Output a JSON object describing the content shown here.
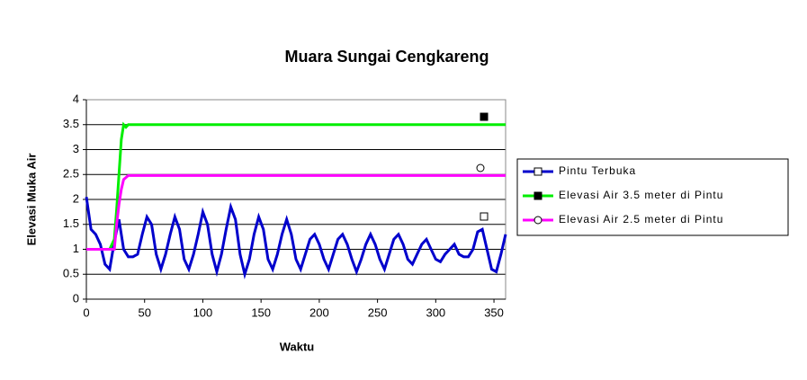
{
  "chart_data": {
    "type": "line",
    "title": "Muara Sungai Cengkareng",
    "x_label": "Waktu",
    "y_label": "Elevasi Muka Air",
    "xlim": [
      0,
      360
    ],
    "xticks": [
      0,
      50,
      100,
      150,
      200,
      250,
      300,
      350
    ],
    "ylim": [
      0,
      4
    ],
    "yticks": [
      0,
      0.5,
      1,
      1.5,
      2,
      2.5,
      3,
      3.5,
      4
    ],
    "grid": true,
    "legend": "right",
    "series": [
      {
        "name": "Pintu Terbuka",
        "color": "#0000cc",
        "marker": "square",
        "x": [
          0,
          4,
          8,
          12,
          16,
          20,
          24,
          28,
          32,
          36,
          40,
          44,
          48,
          52,
          56,
          60,
          64,
          68,
          72,
          76,
          80,
          84,
          88,
          92,
          96,
          100,
          104,
          108,
          112,
          116,
          120,
          124,
          128,
          132,
          136,
          140,
          144,
          148,
          152,
          156,
          160,
          164,
          168,
          172,
          176,
          180,
          184,
          188,
          192,
          196,
          200,
          204,
          208,
          212,
          216,
          220,
          224,
          228,
          232,
          236,
          240,
          244,
          248,
          252,
          256,
          260,
          264,
          268,
          272,
          276,
          280,
          284,
          288,
          292,
          296,
          300,
          304,
          308,
          312,
          316,
          320,
          324,
          328,
          332,
          336,
          340,
          344,
          348,
          352,
          356,
          360
        ],
        "values": [
          2.05,
          1.4,
          1.3,
          1.1,
          0.7,
          0.6,
          1.15,
          1.6,
          1.0,
          0.85,
          0.85,
          0.9,
          1.3,
          1.65,
          1.5,
          0.9,
          0.6,
          0.9,
          1.3,
          1.65,
          1.4,
          0.8,
          0.6,
          0.9,
          1.3,
          1.75,
          1.5,
          0.9,
          0.55,
          0.9,
          1.4,
          1.85,
          1.6,
          0.9,
          0.5,
          0.8,
          1.3,
          1.65,
          1.4,
          0.8,
          0.6,
          0.9,
          1.3,
          1.6,
          1.3,
          0.8,
          0.6,
          0.9,
          1.2,
          1.3,
          1.1,
          0.8,
          0.6,
          0.9,
          1.2,
          1.3,
          1.1,
          0.8,
          0.55,
          0.8,
          1.1,
          1.3,
          1.1,
          0.8,
          0.6,
          0.9,
          1.2,
          1.3,
          1.1,
          0.8,
          0.7,
          0.9,
          1.1,
          1.2,
          1.0,
          0.8,
          0.75,
          0.9,
          1.0,
          1.1,
          0.9,
          0.85,
          0.85,
          1.0,
          1.35,
          1.4,
          1.0,
          0.6,
          0.55,
          0.9,
          1.3
        ]
      },
      {
        "name": "Elevasi Air 3.5 meter di Pintu",
        "color": "#00ee00",
        "marker": "filled-square",
        "x": [
          0,
          20,
          24,
          26,
          28,
          30,
          32,
          34,
          36,
          360
        ],
        "values": [
          1,
          1,
          1.2,
          1.8,
          2.5,
          3.2,
          3.5,
          3.45,
          3.5,
          3.5
        ]
      },
      {
        "name": "Elevasi Air 2.5 meter di Pintu",
        "color": "#ff00ff",
        "marker": "circle",
        "x": [
          0,
          24,
          26,
          28,
          30,
          32,
          36,
          360
        ],
        "values": [
          1,
          1,
          1.5,
          1.9,
          2.2,
          2.4,
          2.48,
          2.48
        ]
      }
    ]
  }
}
